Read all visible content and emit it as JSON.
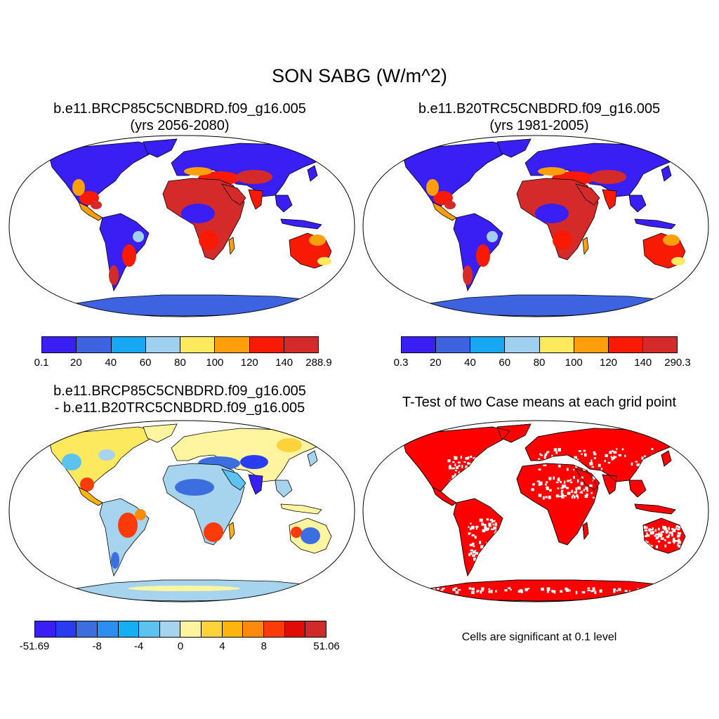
{
  "title": "SON SABG (W/m^2)",
  "panels": [
    {
      "id": "case1",
      "title_line1": "b.e11.BRCP85C5CNBDRD.f09_g16.005",
      "title_line2": "(yrs 2056-2080)",
      "colorbar": {
        "colors": [
          "#3a1ff5",
          "#3e63e0",
          "#17a7f3",
          "#9fd0ef",
          "#fde95e",
          "#fd9e0b",
          "#f91a06",
          "#d42a2a"
        ],
        "labels": [
          "0.1",
          "20",
          "40",
          "60",
          "80",
          "100",
          "120",
          "140",
          "288.9"
        ]
      }
    },
    {
      "id": "case2",
      "title_line1": "b.e11.B20TRC5CNBDRD.f09_g16.005",
      "title_line2": "(yrs 1981-2005)",
      "colorbar": {
        "colors": [
          "#3a1ff5",
          "#3e63e0",
          "#17a7f3",
          "#9fd0ef",
          "#fde95e",
          "#fd9e0b",
          "#f91a06",
          "#d42a2a"
        ],
        "labels": [
          "0.3",
          "20",
          "40",
          "60",
          "80",
          "100",
          "120",
          "140",
          "290.3"
        ]
      }
    },
    {
      "id": "difference",
      "title_line1": "b.e11.BRCP85C5CNBDRD.f09_g16.005",
      "title_line2": "- b.e11.B20TRC5CNBDRD.f09_g16.005",
      "colorbar": {
        "colors": [
          "#3a1ff5",
          "#2a3cf0",
          "#3d6ee0",
          "#2b8ef0",
          "#16aef2",
          "#5cc2ef",
          "#a6d4ee",
          "#fff4a0",
          "#fdd23a",
          "#fdb40f",
          "#fd8a0a",
          "#fb3b0a",
          "#e00c06",
          "#cf2b2b"
        ],
        "labels": [
          "-51.69",
          "-8",
          "-4",
          "0",
          "4",
          "8",
          "51.06"
        ]
      }
    },
    {
      "id": "ttest",
      "title_line1": "T-Test of two Case means at each grid point",
      "note": "Cells are significant at 0.1 level",
      "color": "#ff0000"
    }
  ]
}
